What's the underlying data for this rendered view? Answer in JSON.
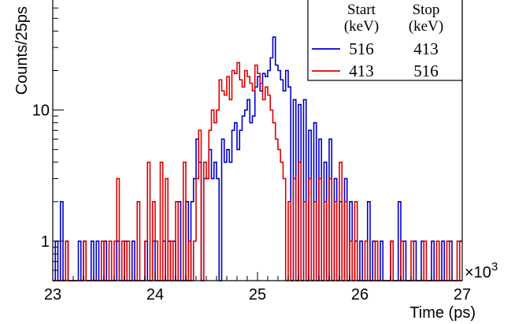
{
  "chart_data": {
    "type": "line",
    "title": "",
    "xlabel": "Time (ps)",
    "ylabel": "Counts/25ps",
    "x_multiplier": "×10",
    "x_multiplier_exp": "3",
    "xlim": [
      23000,
      27000
    ],
    "ylim": [
      0.5,
      70
    ],
    "yscale": "log",
    "x_ticks": [
      23000,
      24000,
      25000,
      26000,
      27000
    ],
    "x_tick_labels": [
      "23",
      "24",
      "25",
      "26",
      "27"
    ],
    "y_ticks": [
      1,
      10
    ],
    "y_tick_labels": [
      "1",
      "10"
    ],
    "grid": false,
    "legend": {
      "placement": "top-right",
      "headers": [
        "Start",
        "Stop"
      ],
      "units": [
        "(keV)",
        "(keV)"
      ]
    },
    "bin_width": 25,
    "series": [
      {
        "start": "516",
        "stop": "413",
        "color": "#0000cc",
        "bins": [
          [
            23025,
            1
          ],
          [
            23075,
            2
          ],
          [
            23125,
            1
          ],
          [
            23250,
            1
          ],
          [
            23300,
            1
          ],
          [
            23375,
            1
          ],
          [
            23425,
            1
          ],
          [
            23500,
            1
          ],
          [
            23625,
            1
          ],
          [
            23700,
            1
          ],
          [
            23775,
            1
          ],
          [
            23900,
            1
          ],
          [
            23975,
            1
          ],
          [
            24075,
            1
          ],
          [
            24125,
            1
          ],
          [
            24175,
            1
          ],
          [
            24225,
            2
          ],
          [
            24300,
            2
          ],
          [
            24350,
            2
          ],
          [
            24375,
            3
          ],
          [
            24400,
            6
          ],
          [
            24425,
            4
          ],
          [
            24475,
            3
          ],
          [
            24500,
            3
          ],
          [
            24525,
            5
          ],
          [
            24550,
            3
          ],
          [
            24575,
            4
          ],
          [
            24600,
            3
          ],
          [
            24650,
            6
          ],
          [
            24675,
            4
          ],
          [
            24700,
            5
          ],
          [
            24725,
            4
          ],
          [
            24750,
            7
          ],
          [
            24775,
            8
          ],
          [
            24800,
            5
          ],
          [
            24825,
            7
          ],
          [
            24850,
            9
          ],
          [
            24875,
            10
          ],
          [
            24900,
            12
          ],
          [
            24925,
            8
          ],
          [
            24950,
            9
          ],
          [
            24975,
            15
          ],
          [
            25000,
            18
          ],
          [
            25025,
            14
          ],
          [
            25050,
            19
          ],
          [
            25075,
            18
          ],
          [
            25100,
            20
          ],
          [
            25125,
            25
          ],
          [
            25150,
            36
          ],
          [
            25175,
            22
          ],
          [
            25200,
            20
          ],
          [
            25225,
            17
          ],
          [
            25250,
            14
          ],
          [
            25275,
            20
          ],
          [
            25300,
            15
          ],
          [
            25350,
            12
          ],
          [
            25400,
            11
          ],
          [
            25450,
            12
          ],
          [
            25500,
            7
          ],
          [
            25550,
            8
          ],
          [
            25600,
            6
          ],
          [
            25650,
            4
          ],
          [
            25700,
            6
          ],
          [
            25750,
            3
          ],
          [
            25800,
            2
          ],
          [
            25850,
            3
          ],
          [
            25900,
            2
          ],
          [
            25950,
            1
          ],
          [
            26000,
            1
          ],
          [
            26075,
            2
          ],
          [
            26125,
            1
          ],
          [
            26200,
            1
          ],
          [
            26300,
            1
          ],
          [
            26375,
            2
          ],
          [
            26425,
            1
          ],
          [
            26525,
            1
          ],
          [
            26600,
            1
          ],
          [
            26700,
            1
          ],
          [
            26800,
            1
          ],
          [
            26875,
            1
          ],
          [
            26975,
            1
          ]
        ]
      },
      {
        "start": "413",
        "stop": "516",
        "color": "#dd0000",
        "bins": [
          [
            23125,
            1
          ],
          [
            23300,
            1
          ],
          [
            23475,
            1
          ],
          [
            23550,
            1
          ],
          [
            23600,
            1
          ],
          [
            23625,
            3
          ],
          [
            23675,
            1
          ],
          [
            23725,
            1
          ],
          [
            23825,
            2
          ],
          [
            23900,
            1
          ],
          [
            23925,
            4
          ],
          [
            23975,
            2
          ],
          [
            24000,
            1
          ],
          [
            24050,
            4
          ],
          [
            24100,
            3
          ],
          [
            24150,
            1
          ],
          [
            24200,
            2
          ],
          [
            24275,
            4
          ],
          [
            24325,
            1
          ],
          [
            24375,
            1
          ],
          [
            24400,
            3
          ],
          [
            24425,
            7
          ],
          [
            24475,
            4
          ],
          [
            24500,
            3
          ],
          [
            24525,
            7
          ],
          [
            24550,
            10
          ],
          [
            24575,
            8
          ],
          [
            24600,
            10
          ],
          [
            24625,
            17
          ],
          [
            24650,
            14
          ],
          [
            24675,
            13
          ],
          [
            24700,
            18
          ],
          [
            24725,
            12
          ],
          [
            24750,
            20
          ],
          [
            24775,
            19
          ],
          [
            24800,
            23
          ],
          [
            24825,
            17
          ],
          [
            24850,
            15
          ],
          [
            24875,
            20
          ],
          [
            24900,
            18
          ],
          [
            24925,
            16
          ],
          [
            24950,
            14
          ],
          [
            24975,
            22
          ],
          [
            25000,
            19
          ],
          [
            25025,
            16
          ],
          [
            25050,
            12
          ],
          [
            25075,
            15
          ],
          [
            25100,
            13
          ],
          [
            25125,
            10
          ],
          [
            25150,
            8
          ],
          [
            25175,
            6
          ],
          [
            25200,
            5
          ],
          [
            25225,
            4
          ],
          [
            25250,
            3
          ],
          [
            25300,
            2
          ],
          [
            25350,
            3
          ],
          [
            25400,
            4
          ],
          [
            25450,
            2
          ],
          [
            25500,
            3
          ],
          [
            25550,
            2
          ],
          [
            25600,
            3
          ],
          [
            25650,
            2
          ],
          [
            25700,
            3
          ],
          [
            25750,
            2
          ],
          [
            25800,
            4
          ],
          [
            25850,
            2
          ],
          [
            25900,
            1
          ],
          [
            25950,
            2
          ],
          [
            26050,
            1
          ],
          [
            26150,
            1
          ],
          [
            26300,
            1
          ],
          [
            26400,
            1
          ],
          [
            26500,
            1
          ],
          [
            26625,
            1
          ],
          [
            26750,
            1
          ],
          [
            26850,
            1
          ],
          [
            26950,
            1
          ]
        ]
      }
    ]
  }
}
